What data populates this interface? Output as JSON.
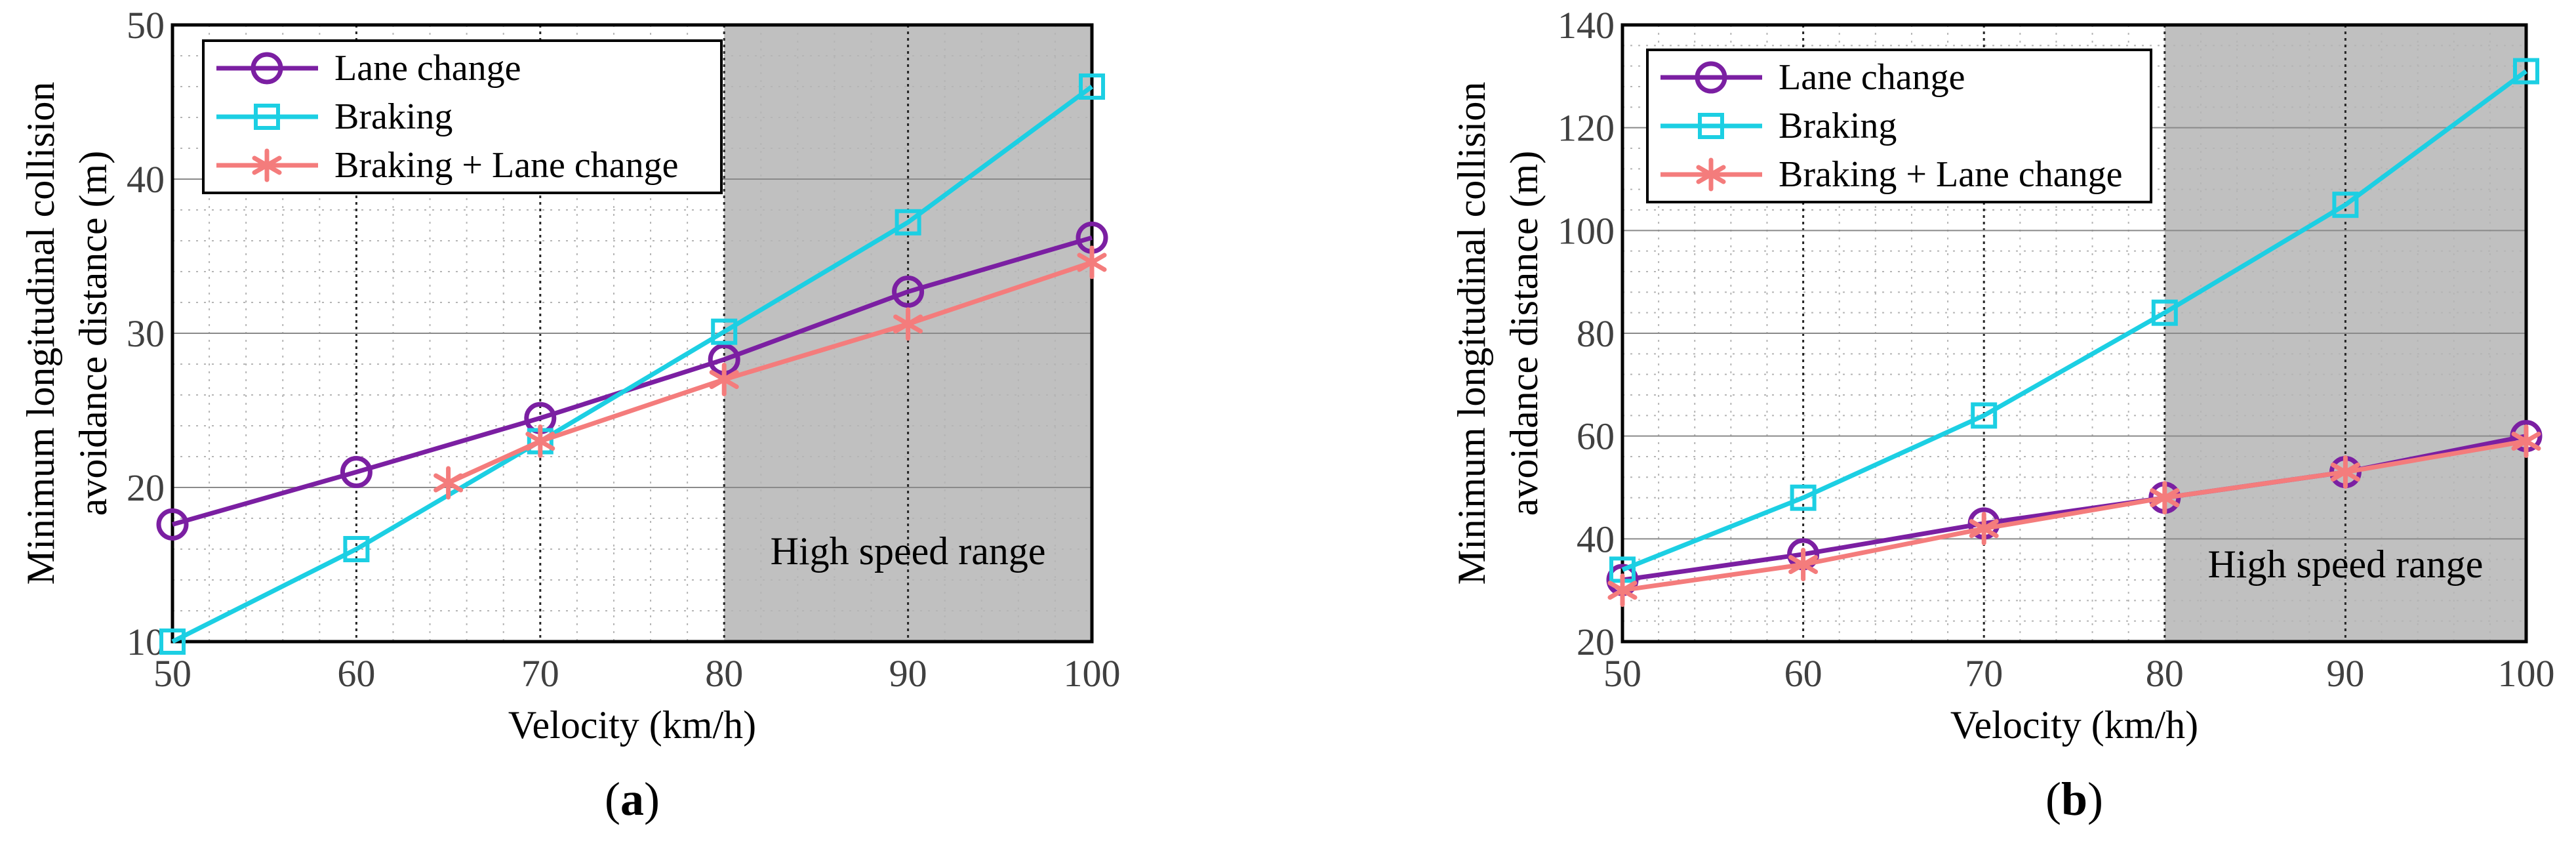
{
  "chart_data": [
    {
      "panel_label": "a",
      "type": "line",
      "title": "",
      "xlabel": "Velocity (km/h)",
      "ylabel_lines": [
        "Minimum longitudinal collision",
        "avoidance distance (m)"
      ],
      "xlim": [
        50,
        100
      ],
      "ylim": [
        10,
        50
      ],
      "xticks": [
        50,
        60,
        70,
        80,
        90,
        100
      ],
      "yticks": [
        10,
        20,
        30,
        40,
        50
      ],
      "grid": true,
      "legend_position": "top-left",
      "region": {
        "from": 80,
        "to": 100,
        "label": "High speed range",
        "color": "#c0c0c0"
      },
      "series": [
        {
          "name": "Lane change",
          "marker": "circle",
          "color": "#7b1fa2",
          "x": [
            50,
            60,
            70,
            80,
            90,
            100
          ],
          "y": [
            17.6,
            21.0,
            24.5,
            28.3,
            32.7,
            36.2
          ]
        },
        {
          "name": "Braking",
          "marker": "square",
          "color": "#1ccfe3",
          "x": [
            50,
            60,
            70,
            80,
            90,
            100
          ],
          "y": [
            10.0,
            16.0,
            23.0,
            30.1,
            37.2,
            46.0
          ]
        },
        {
          "name": "Braking + Lane change",
          "marker": "asterisk",
          "color": "#f47c7c",
          "x": [
            65,
            70,
            80,
            90,
            100
          ],
          "y": [
            20.3,
            23.0,
            27.0,
            30.6,
            34.6
          ]
        }
      ]
    },
    {
      "panel_label": "b",
      "type": "line",
      "title": "",
      "xlabel": "Velocity (km/h)",
      "ylabel_lines": [
        "Minimum longitudinal collision",
        "avoidance distance (m)"
      ],
      "xlim": [
        50,
        100
      ],
      "ylim": [
        20,
        140
      ],
      "xticks": [
        50,
        60,
        70,
        80,
        90,
        100
      ],
      "yticks": [
        20,
        40,
        60,
        80,
        100,
        120,
        140
      ],
      "grid": true,
      "legend_position": "top-left",
      "region": {
        "from": 80,
        "to": 100,
        "label": "High speed range",
        "color": "#c0c0c0"
      },
      "series": [
        {
          "name": "Lane change",
          "marker": "circle",
          "color": "#7b1fa2",
          "x": [
            50,
            60,
            70,
            80,
            90,
            100
          ],
          "y": [
            32,
            37,
            43,
            48,
            53,
            60
          ]
        },
        {
          "name": "Braking",
          "marker": "square",
          "color": "#1ccfe3",
          "x": [
            50,
            60,
            70,
            80,
            90,
            100
          ],
          "y": [
            34,
            48,
            64,
            84,
            105,
            131
          ]
        },
        {
          "name": "Braking + Lane change",
          "marker": "asterisk",
          "color": "#f47c7c",
          "x": [
            50,
            60,
            70,
            80,
            90,
            100
          ],
          "y": [
            30,
            35,
            42,
            48,
            53,
            59
          ]
        }
      ]
    }
  ]
}
